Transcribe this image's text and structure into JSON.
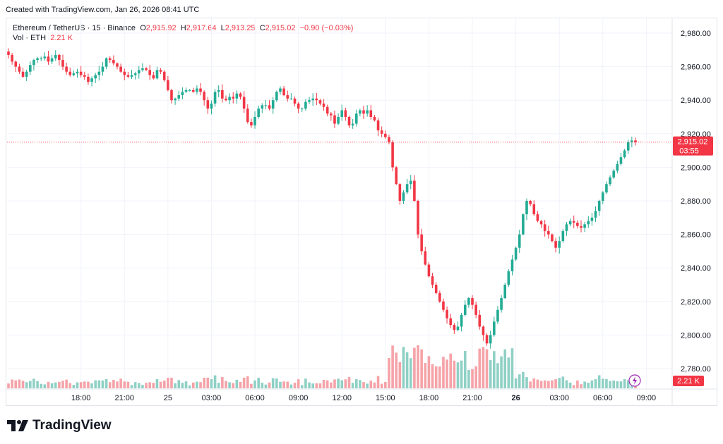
{
  "header": {
    "created": "Created with TradingView.com, Jan 26, 2026 08:41 UTC"
  },
  "legend": {
    "symbol": "Ethereum / TetherUS · 15 · Binance",
    "o_label": "O",
    "o_value": "2,915.92",
    "h_label": "H",
    "h_value": "2,917.64",
    "l_label": "L",
    "l_value": "2,913.25",
    "c_label": "C",
    "c_value": "2,915.02",
    "change": "−0.90 (−0.03%)",
    "vol_label": "Vol · ETH",
    "vol_value": "2.21 K"
  },
  "price_badge": {
    "price": "2,915.02",
    "countdown": "03:55"
  },
  "vol_badge": {
    "value": "2.21 K"
  },
  "brand": {
    "name": "TradingView"
  },
  "colors": {
    "up": "#22ab94",
    "down": "#f23645",
    "vol_up": "#8fd0c5",
    "vol_down": "#f5a3a8"
  },
  "chart_data": {
    "type": "candlestick",
    "title": "Ethereum / TetherUS · 15 · Binance",
    "ylim": [
      2770,
      2990
    ],
    "y_ticks": [
      2780,
      2800,
      2820,
      2840,
      2860,
      2880,
      2900,
      2920,
      2940,
      2960,
      2980
    ],
    "y_tick_labels": [
      "2,780.00",
      "2,800.00",
      "2,820.00",
      "2,840.00",
      "2,860.00",
      "2,880.00",
      "2,900.00",
      "2,920.00",
      "2,940.00",
      "2,960.00",
      "2,980.00"
    ],
    "x_ticks": [
      {
        "label": "18:00",
        "bar": 20,
        "bold": false
      },
      {
        "label": "21:00",
        "bar": 32,
        "bold": false
      },
      {
        "label": "25",
        "bar": 44,
        "bold": false
      },
      {
        "label": "03:00",
        "bar": 56,
        "bold": false
      },
      {
        "label": "06:00",
        "bar": 68,
        "bold": false
      },
      {
        "label": "09:00",
        "bar": 80,
        "bold": false
      },
      {
        "label": "12:00",
        "bar": 92,
        "bold": false
      },
      {
        "label": "15:00",
        "bar": 104,
        "bold": false
      },
      {
        "label": "18:00",
        "bar": 116,
        "bold": false
      },
      {
        "label": "21:00",
        "bar": 128,
        "bold": false
      },
      {
        "label": "26",
        "bar": 140,
        "bold": true
      },
      {
        "label": "03:00",
        "bar": 152,
        "bold": false
      },
      {
        "label": "06:00",
        "bar": 164,
        "bold": false
      },
      {
        "label": "09:00",
        "bar": 176,
        "bold": false
      }
    ],
    "current_price": 2915.02,
    "candles_close": [
      2967,
      2963,
      2960,
      2957,
      2954,
      2957,
      2961,
      2964,
      2965,
      2965,
      2966,
      2963,
      2965,
      2967,
      2964,
      2960,
      2957,
      2955,
      2956,
      2957,
      2955,
      2954,
      2951,
      2953,
      2955,
      2957,
      2960,
      2965,
      2964,
      2962,
      2960,
      2957,
      2955,
      2954,
      2955,
      2956,
      2958,
      2959,
      2958,
      2955,
      2953,
      2958,
      2957,
      2952,
      2946,
      2940,
      2941,
      2943,
      2945,
      2946,
      2946,
      2945,
      2947,
      2945,
      2940,
      2935,
      2938,
      2945,
      2946,
      2941,
      2940,
      2942,
      2941,
      2944,
      2942,
      2935,
      2927,
      2925,
      2930,
      2935,
      2937,
      2937,
      2935,
      2940,
      2945,
      2947,
      2943,
      2941,
      2941,
      2938,
      2935,
      2935,
      2939,
      2940,
      2941,
      2940,
      2938,
      2936,
      2932,
      2931,
      2926,
      2930,
      2934,
      2930,
      2925,
      2926,
      2932,
      2934,
      2932,
      2934,
      2930,
      2928,
      2922,
      2920,
      2918,
      2915,
      2900,
      2890,
      2880,
      2885,
      2890,
      2892,
      2880,
      2860,
      2850,
      2842,
      2835,
      2830,
      2825,
      2820,
      2815,
      2810,
      2806,
      2803,
      2805,
      2812,
      2818,
      2822,
      2818,
      2812,
      2805,
      2800,
      2795,
      2800,
      2808,
      2815,
      2822,
      2830,
      2838,
      2845,
      2852,
      2860,
      2872,
      2880,
      2878,
      2872,
      2868,
      2866,
      2862,
      2860,
      2856,
      2852,
      2856,
      2862,
      2866,
      2868,
      2867,
      2865,
      2864,
      2866,
      2868,
      2870,
      2874,
      2880,
      2885,
      2890,
      2894,
      2898,
      2902,
      2906,
      2910,
      2915,
      2916,
      2915.02
    ],
    "volume_unit": "K ETH",
    "last_volume": 2.21
  }
}
